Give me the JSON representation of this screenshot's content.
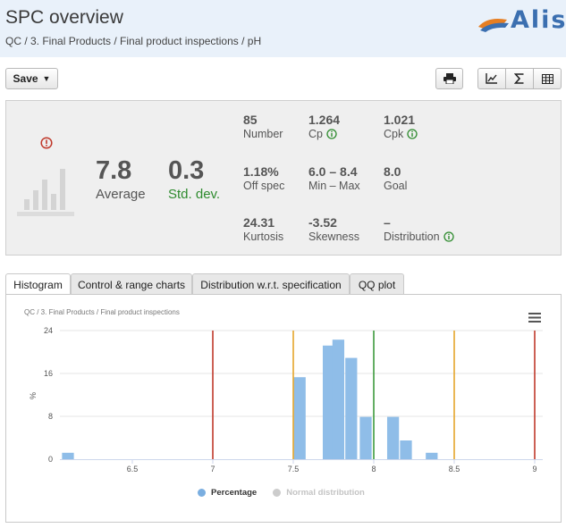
{
  "header": {
    "title": "SPC overview",
    "breadcrumb": "QC / 3. Final Products / Final product inspections / pH",
    "logo_text": "Alis"
  },
  "toolbar": {
    "save_label": "Save",
    "save_caret": "▼",
    "icons": [
      "printer-icon",
      "line-chart-icon",
      "sigma-icon",
      "table-icon"
    ]
  },
  "stats": {
    "average": {
      "value": "7.8",
      "label": "Average"
    },
    "std_dev": {
      "value": "0.3",
      "label": "Std. dev."
    },
    "number": {
      "value": "85",
      "label": "Number"
    },
    "cp": {
      "value": "1.264",
      "label": "Cp"
    },
    "cpk": {
      "value": "1.021",
      "label": "Cpk"
    },
    "off_spec": {
      "value": "1.18%",
      "label": "Off spec"
    },
    "min_max": {
      "value": "6.0 – 8.4",
      "label": "Min – Max"
    },
    "goal": {
      "value": "8.0",
      "label": "Goal"
    },
    "kurtosis": {
      "value": "24.31",
      "label": "Kurtosis"
    },
    "skewness": {
      "value": "-3.52",
      "label": "Skewness"
    },
    "distribution": {
      "value": "–",
      "label": "Distribution"
    }
  },
  "tabs": [
    {
      "label": "Histogram",
      "active": true
    },
    {
      "label": "Control & range charts",
      "active": false
    },
    {
      "label": "Distribution w.r.t. specification",
      "active": false
    },
    {
      "label": "QQ plot",
      "active": false
    }
  ],
  "chart_crumb": "QC / 3. Final Products / Final product inspections",
  "colors": {
    "bar": "#8fbde8",
    "spec_limit": "#c0392b",
    "warn_limit": "#e5a52a",
    "goal_line": "#3c9a3c",
    "warning_icon": "#c0392b",
    "info_icon": "#2e8b2e"
  },
  "chart_data": {
    "type": "bar",
    "title": "",
    "xlabel": "",
    "ylabel": "%",
    "xlim": [
      6.05,
      9.05
    ],
    "ylim": [
      0,
      24
    ],
    "y_ticks": [
      "0",
      "8",
      "16",
      "24"
    ],
    "x_ticks": [
      "6.5",
      "7",
      "7.5",
      "8",
      "8.5",
      "9"
    ],
    "bin_width": 0.08,
    "bins": [
      {
        "x": 6.1,
        "value": 1.2
      },
      {
        "x": 7.54,
        "value": 15.3
      },
      {
        "x": 7.72,
        "value": 21.2
      },
      {
        "x": 7.78,
        "value": 22.3
      },
      {
        "x": 7.86,
        "value": 18.9
      },
      {
        "x": 7.95,
        "value": 7.9
      },
      {
        "x": 8.12,
        "value": 7.9
      },
      {
        "x": 8.2,
        "value": 3.5
      },
      {
        "x": 8.36,
        "value": 1.2
      }
    ],
    "reference_lines": [
      {
        "x": 7.0,
        "kind": "spec_limit"
      },
      {
        "x": 9.0,
        "kind": "spec_limit"
      },
      {
        "x": 7.5,
        "kind": "warn_limit"
      },
      {
        "x": 8.5,
        "kind": "warn_limit"
      },
      {
        "x": 8.0,
        "kind": "goal_line"
      }
    ],
    "legend": {
      "placement": "bottom-center",
      "entries": [
        {
          "name": "Percentage",
          "color": "#7aaee0",
          "active": true
        },
        {
          "name": "Normal distribution",
          "color": "#cccccc",
          "active": false
        }
      ]
    }
  }
}
